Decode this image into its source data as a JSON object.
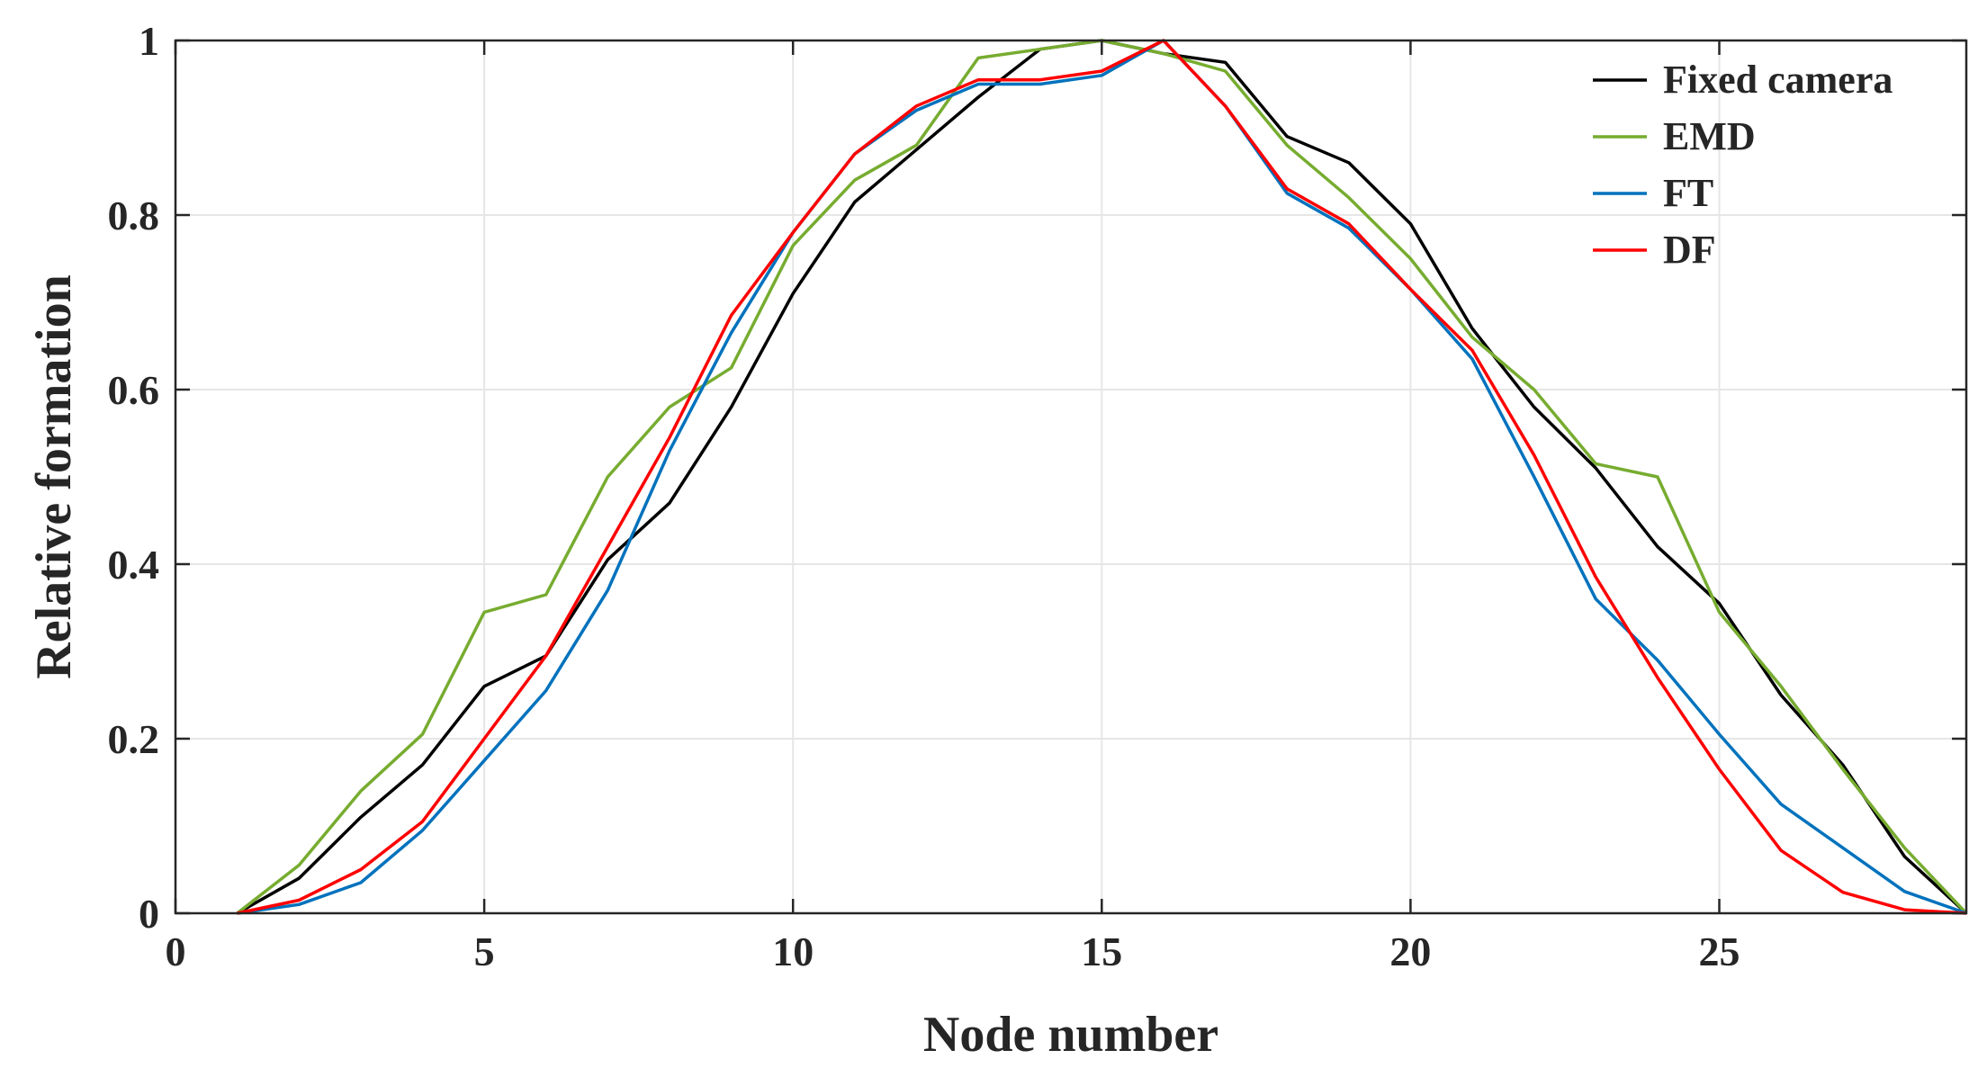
{
  "chart_data": {
    "type": "line",
    "title": "",
    "xlabel": "Node number",
    "ylabel": "Relative formation",
    "xlim": [
      0,
      29
    ],
    "ylim": [
      0,
      1
    ],
    "xticks": [
      0,
      5,
      10,
      15,
      20,
      25
    ],
    "yticks": [
      0,
      0.2,
      0.4,
      0.6,
      0.8,
      1
    ],
    "xtick_labels": [
      "0",
      "5",
      "10",
      "15",
      "20",
      "25"
    ],
    "ytick_labels": [
      "0",
      "0.2",
      "0.4",
      "0.6",
      "0.8",
      "1"
    ],
    "grid": true,
    "legend_position": "top-right",
    "x": [
      1,
      2,
      3,
      4,
      5,
      6,
      7,
      8,
      9,
      10,
      11,
      12,
      13,
      14,
      15,
      16,
      17,
      18,
      19,
      20,
      21,
      22,
      23,
      24,
      25,
      26,
      27,
      28,
      29
    ],
    "series": [
      {
        "name": "Fixed camera",
        "color": "#000000",
        "values": [
          0,
          0.04,
          0.11,
          0.17,
          0.26,
          0.295,
          0.405,
          0.47,
          0.58,
          0.71,
          0.815,
          0.875,
          0.935,
          0.99,
          1.0,
          0.985,
          0.975,
          0.89,
          0.86,
          0.79,
          0.67,
          0.58,
          0.51,
          0.42,
          0.355,
          0.25,
          0.17,
          0.065,
          0.0
        ]
      },
      {
        "name": "EMD",
        "color": "#77AC30",
        "values": [
          0,
          0.055,
          0.14,
          0.205,
          0.345,
          0.365,
          0.5,
          0.58,
          0.625,
          0.765,
          0.84,
          0.88,
          0.98,
          0.99,
          1.0,
          0.985,
          0.965,
          0.88,
          0.82,
          0.75,
          0.66,
          0.6,
          0.515,
          0.5,
          0.345,
          0.26,
          0.165,
          0.075,
          0.0
        ]
      },
      {
        "name": "FT",
        "color": "#0072BD",
        "values": [
          0,
          0.01,
          0.035,
          0.095,
          0.175,
          0.255,
          0.37,
          0.53,
          0.665,
          0.78,
          0.87,
          0.92,
          0.95,
          0.95,
          0.96,
          1.0,
          0.925,
          0.825,
          0.785,
          0.715,
          0.635,
          0.5,
          0.36,
          0.29,
          0.205,
          0.125,
          0.075,
          0.025,
          0.0
        ]
      },
      {
        "name": "DF",
        "color": "#FF0000",
        "values": [
          0,
          0.015,
          0.05,
          0.105,
          0.2,
          0.295,
          0.42,
          0.545,
          0.685,
          0.78,
          0.87,
          0.925,
          0.955,
          0.955,
          0.965,
          1.0,
          0.925,
          0.83,
          0.79,
          0.715,
          0.645,
          0.525,
          0.385,
          0.27,
          0.165,
          0.072,
          0.024,
          0.004,
          0.0
        ]
      }
    ]
  }
}
